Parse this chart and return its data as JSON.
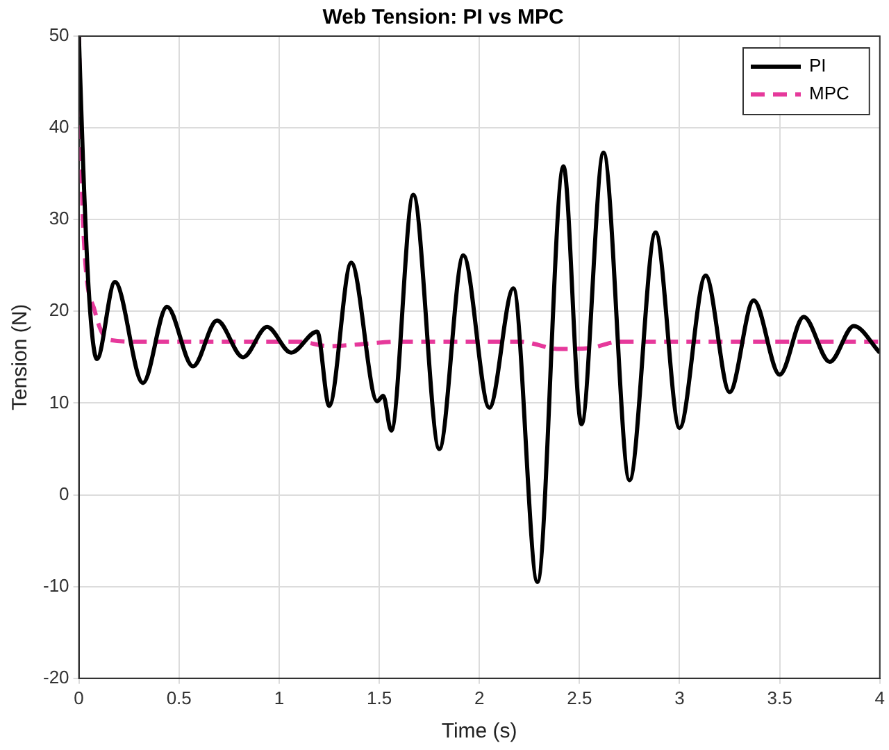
{
  "chart_data": {
    "type": "line",
    "title": "Web Tension: PI vs MPC",
    "xlabel": "Time (s)",
    "ylabel": "Tension (N)",
    "xlim": [
      0,
      4
    ],
    "xticks": [
      0,
      0.5,
      1,
      1.5,
      2,
      2.5,
      3,
      3.5,
      4
    ],
    "ylim": [
      -20,
      50
    ],
    "yticks": [
      -20,
      -10,
      0,
      10,
      20,
      30,
      40,
      50
    ],
    "grid": true,
    "legend": "top right",
    "marker": "none",
    "series": [
      {
        "name": "PI",
        "color": "#000000",
        "line_style": "solid",
        "x": [
          0,
          0.02,
          0.05,
          0.09,
          0.18,
          0.32,
          0.44,
          0.57,
          0.69,
          0.82,
          0.94,
          1.06,
          1.19,
          1.25,
          1.36,
          1.49,
          1.52,
          1.56,
          1.67,
          1.8,
          1.92,
          2.05,
          2.17,
          2.29,
          2.42,
          2.51,
          2.62,
          2.75,
          2.88,
          3.0,
          3.13,
          3.25,
          3.37,
          3.5,
          3.62,
          3.75,
          3.87,
          4.0
        ],
        "values": [
          50,
          36.7,
          22,
          14.8,
          23.2,
          12.2,
          20.5,
          14,
          19,
          15,
          18.3,
          15.5,
          17.8,
          9.7,
          25.3,
          10.2,
          10.8,
          7,
          32.7,
          5,
          26.1,
          9.5,
          22.5,
          -9.5,
          35.8,
          7.7,
          37.3,
          1.6,
          28.6,
          7.3,
          23.9,
          11.2,
          21.2,
          13.1,
          19.4,
          14.5,
          18.4,
          15.5
        ]
      },
      {
        "name": "MPC",
        "color": "#e6399b",
        "line_style": "dashed",
        "x": [
          0,
          0.02,
          0.08,
          0.15,
          0.3,
          1.1,
          1.25,
          1.4,
          1.6,
          2.2,
          2.4,
          2.55,
          2.7,
          4.0
        ],
        "values": [
          50,
          30,
          20,
          16.9,
          16.7,
          16.7,
          16.2,
          16.4,
          16.7,
          16.7,
          15.9,
          16.0,
          16.7,
          16.7
        ]
      }
    ]
  }
}
